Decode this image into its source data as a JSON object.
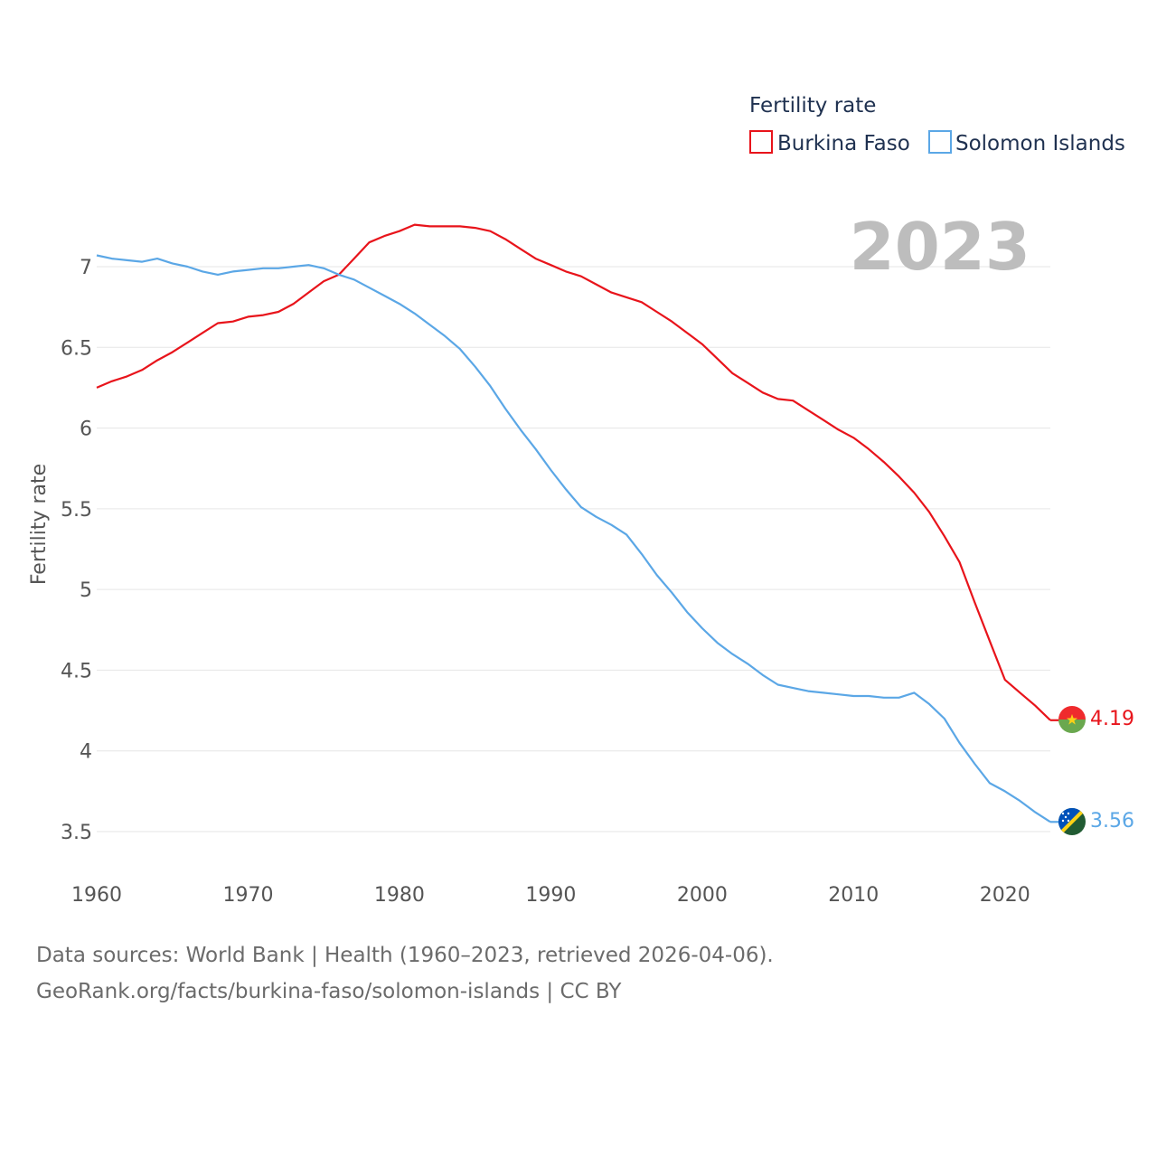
{
  "chart_data": {
    "type": "line",
    "title": "",
    "ylabel": "Fertility rate",
    "xlabel": "",
    "year_label": "2023",
    "legend": {
      "title": "Fertility rate",
      "position": "top-right"
    },
    "xlim": [
      1960,
      2023
    ],
    "ylim": [
      3.5,
      7.3
    ],
    "x_ticks": [
      1960,
      1970,
      1980,
      1990,
      2000,
      2010,
      2020
    ],
    "x_tick_labels": [
      "1960",
      "1970",
      "1980",
      "1990",
      "2000",
      "2010",
      "2020"
    ],
    "y_ticks": [
      3.5,
      4,
      4.5,
      5,
      5.5,
      6,
      6.5,
      7
    ],
    "y_tick_labels": [
      "3.5",
      "4",
      "4.5",
      "5",
      "5.5",
      "6",
      "6.5",
      "7"
    ],
    "grid": true,
    "x": [
      1960,
      1961,
      1962,
      1963,
      1964,
      1965,
      1966,
      1967,
      1968,
      1969,
      1970,
      1971,
      1972,
      1973,
      1974,
      1975,
      1976,
      1977,
      1978,
      1979,
      1980,
      1981,
      1982,
      1983,
      1984,
      1985,
      1986,
      1987,
      1988,
      1989,
      1990,
      1991,
      1992,
      1993,
      1994,
      1995,
      1996,
      1997,
      1998,
      1999,
      2000,
      2001,
      2002,
      2003,
      2004,
      2005,
      2006,
      2007,
      2008,
      2009,
      2010,
      2011,
      2012,
      2013,
      2014,
      2015,
      2016,
      2017,
      2018,
      2019,
      2020,
      2021,
      2022,
      2023
    ],
    "series": [
      {
        "name": "Burkina Faso",
        "color": "#e8141b",
        "flag": "burkina-faso-flag",
        "end_label": "4.19",
        "values": [
          6.25,
          6.29,
          6.32,
          6.36,
          6.42,
          6.47,
          6.53,
          6.59,
          6.65,
          6.66,
          6.69,
          6.7,
          6.72,
          6.77,
          6.84,
          6.91,
          6.95,
          7.05,
          7.15,
          7.19,
          7.22,
          7.26,
          7.25,
          7.25,
          7.25,
          7.24,
          7.22,
          7.17,
          7.11,
          7.05,
          7.01,
          6.97,
          6.94,
          6.89,
          6.84,
          6.81,
          6.78,
          6.72,
          6.66,
          6.59,
          6.52,
          6.43,
          6.34,
          6.28,
          6.22,
          6.18,
          6.17,
          6.11,
          6.05,
          5.99,
          5.94,
          5.87,
          5.79,
          5.7,
          5.6,
          5.48,
          5.33,
          5.17,
          4.92,
          4.68,
          4.44,
          4.36,
          4.28,
          4.19
        ]
      },
      {
        "name": "Solomon Islands",
        "color": "#5ba7e6",
        "flag": "solomon-islands-flag",
        "end_label": "3.56",
        "values": [
          7.07,
          7.05,
          7.04,
          7.03,
          7.05,
          7.02,
          7.0,
          6.97,
          6.95,
          6.97,
          6.98,
          6.99,
          6.99,
          7.0,
          7.01,
          6.99,
          6.95,
          6.92,
          6.87,
          6.82,
          6.77,
          6.71,
          6.64,
          6.57,
          6.49,
          6.38,
          6.26,
          6.12,
          5.99,
          5.87,
          5.74,
          5.62,
          5.51,
          5.45,
          5.4,
          5.34,
          5.22,
          5.09,
          4.98,
          4.86,
          4.76,
          4.67,
          4.6,
          4.54,
          4.47,
          4.41,
          4.39,
          4.37,
          4.36,
          4.35,
          4.34,
          4.34,
          4.33,
          4.33,
          4.36,
          4.29,
          4.2,
          4.05,
          3.92,
          3.8,
          3.75,
          3.69,
          3.62,
          3.56
        ]
      }
    ]
  },
  "footer": {
    "line1": "Data sources: World Bank | Health (1960–2023, retrieved 2026-04-06).",
    "line2": "GeoRank.org/facts/burkina-faso/solomon-islands | CC BY"
  }
}
